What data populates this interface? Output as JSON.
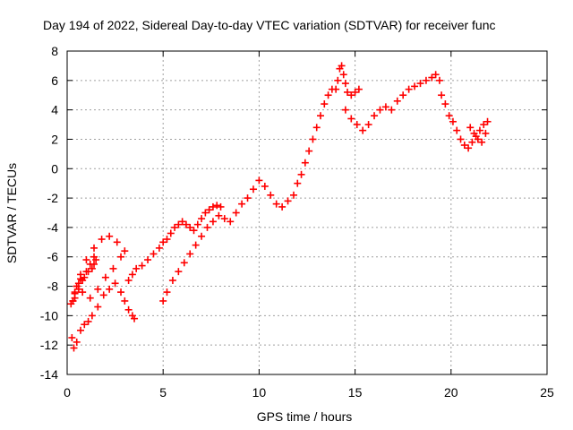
{
  "chart_data": {
    "type": "scatter",
    "title": "Day 194 of 2022, Sidereal Day-to-day VTEC variation (SDTVAR) for receiver func",
    "xlabel": "GPS time / hours",
    "ylabel": "SDTVAR / TECUs",
    "xlim": [
      0,
      25
    ],
    "ylim": [
      -14,
      8
    ],
    "xticks": [
      0,
      5,
      10,
      15,
      20,
      25
    ],
    "yticks": [
      -14,
      -12,
      -10,
      -8,
      -6,
      -4,
      -2,
      0,
      2,
      4,
      6,
      8
    ],
    "xtick_labels": [
      "0",
      "5",
      "10",
      "15",
      "20",
      "25"
    ],
    "ytick_labels": [
      "-14",
      "-12",
      "-10",
      "-8",
      "-6",
      "-4",
      "-2",
      "0",
      "2",
      "4",
      "6",
      "8"
    ],
    "grid": true,
    "marker": "+",
    "series": [
      {
        "name": "SDTVAR",
        "color": "#ff0000",
        "x": [
          0.2,
          0.3,
          0.4,
          0.5,
          0.6,
          0.7,
          0.9,
          1.1,
          1.3,
          1.4,
          1.5,
          1.4,
          1.2,
          1.0,
          0.8,
          0.6,
          0.4,
          0.3,
          0.25,
          0.35,
          0.5,
          0.7,
          0.9,
          1.1,
          1.3,
          1.6,
          1.9,
          2.2,
          2.5,
          2.8,
          3.0,
          3.2,
          3.4,
          3.5,
          0.5,
          0.8,
          1.2,
          1.6,
          2.0,
          2.4,
          2.8,
          3.0,
          2.6,
          2.2,
          1.8,
          1.4,
          1.0,
          0.7,
          0.4,
          3.2,
          3.4,
          3.6,
          3.9,
          4.2,
          4.5,
          4.8,
          5.0,
          5.2,
          5.4,
          5.6,
          5.8,
          6.0,
          6.2,
          6.4,
          6.6,
          6.8,
          7.0,
          7.2,
          7.4,
          7.6,
          7.8,
          8.0,
          5.0,
          5.2,
          5.5,
          5.8,
          6.1,
          6.4,
          6.7,
          7.0,
          7.3,
          7.6,
          7.9,
          8.2,
          8.5,
          8.8,
          9.1,
          9.4,
          9.7,
          10.0,
          10.3,
          10.6,
          10.9,
          11.2,
          11.5,
          11.8,
          12.0,
          12.2,
          12.4,
          12.6,
          12.8,
          13.0,
          13.2,
          13.4,
          13.6,
          13.8,
          14.0,
          14.1,
          14.2,
          14.3,
          14.4,
          14.5,
          14.6,
          14.8,
          15.0,
          15.2,
          14.5,
          14.8,
          15.1,
          15.4,
          15.7,
          16.0,
          16.3,
          16.6,
          16.9,
          17.2,
          17.5,
          17.8,
          18.1,
          18.4,
          18.7,
          19.0,
          19.2,
          19.4,
          19.5,
          19.7,
          19.9,
          20.1,
          20.3,
          20.5,
          20.7,
          20.9,
          21.1,
          21.3,
          21.5,
          21.7,
          21.9,
          21.8,
          21.6,
          21.4,
          21.2,
          21.0
        ],
        "y": [
          -9.2,
          -9.0,
          -8.5,
          -8.0,
          -7.8,
          -7.5,
          -7.4,
          -7.0,
          -6.8,
          -6.5,
          -6.2,
          -6.0,
          -6.5,
          -7.0,
          -7.6,
          -8.2,
          -8.8,
          -9.0,
          -11.5,
          -12.2,
          -11.8,
          -11.0,
          -10.6,
          -10.4,
          -10.0,
          -9.4,
          -8.6,
          -8.2,
          -7.8,
          -8.4,
          -9.0,
          -9.6,
          -10.0,
          -10.2,
          -8.0,
          -8.4,
          -8.8,
          -8.2,
          -7.4,
          -6.8,
          -6.0,
          -5.6,
          -5.0,
          -4.6,
          -4.8,
          -5.4,
          -6.2,
          -7.2,
          -8.4,
          -7.6,
          -7.2,
          -6.8,
          -6.6,
          -6.2,
          -5.8,
          -5.4,
          -5.0,
          -4.8,
          -4.4,
          -4.0,
          -3.8,
          -3.6,
          -3.8,
          -4.0,
          -4.2,
          -3.8,
          -3.4,
          -3.0,
          -2.8,
          -2.6,
          -2.5,
          -2.6,
          -9.0,
          -8.4,
          -7.6,
          -7.0,
          -6.4,
          -5.8,
          -5.2,
          -4.6,
          -4.0,
          -3.6,
          -3.2,
          -3.4,
          -3.6,
          -3.0,
          -2.4,
          -2.0,
          -1.4,
          -0.8,
          -1.2,
          -1.8,
          -2.4,
          -2.6,
          -2.2,
          -1.8,
          -1.0,
          -0.4,
          0.4,
          1.2,
          2.0,
          2.8,
          3.6,
          4.4,
          5.0,
          5.4,
          5.4,
          6.0,
          6.8,
          7.0,
          6.4,
          5.8,
          5.2,
          5.0,
          5.2,
          5.4,
          4.0,
          3.4,
          3.0,
          2.6,
          3.0,
          3.6,
          4.0,
          4.2,
          4.0,
          4.6,
          5.0,
          5.4,
          5.6,
          5.8,
          6.0,
          6.2,
          6.4,
          6.0,
          5.0,
          4.4,
          3.6,
          3.2,
          2.6,
          2.0,
          1.6,
          1.4,
          1.8,
          2.2,
          2.6,
          3.0,
          3.2,
          2.4,
          1.8,
          2.0,
          2.4,
          2.8
        ]
      }
    ]
  }
}
